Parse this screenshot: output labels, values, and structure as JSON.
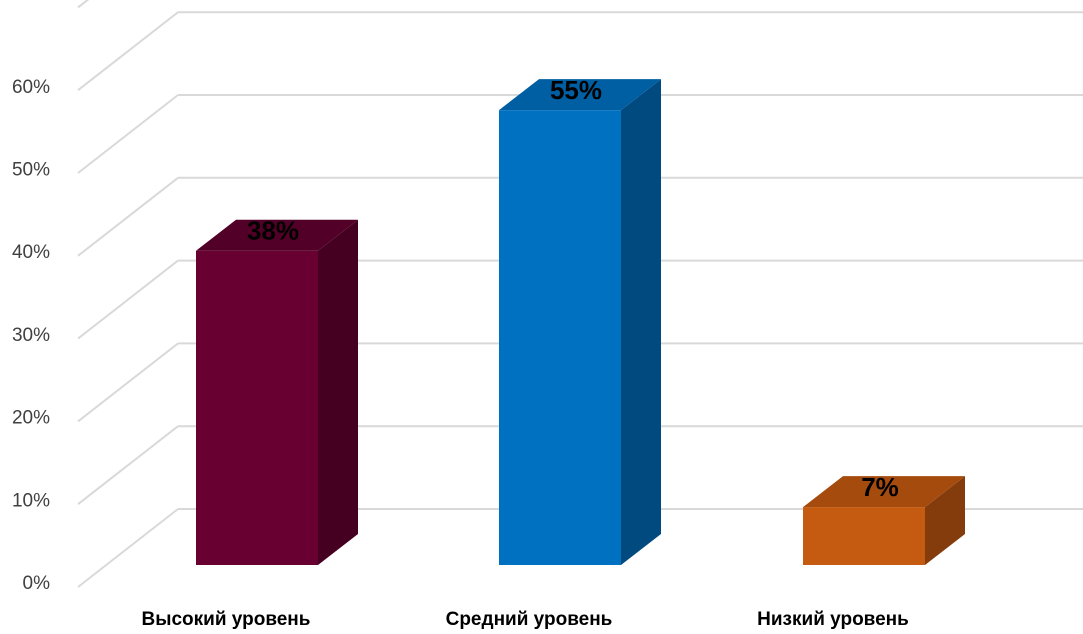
{
  "chart_data": {
    "type": "bar",
    "three_d": true,
    "categories": [
      "Высокий уровень",
      "Средний уровень",
      "Низкий уровень"
    ],
    "values": [
      38,
      55,
      7
    ],
    "data_labels": [
      "38%",
      "55%",
      "7%"
    ],
    "y_ticks": [
      "0%",
      "10%",
      "20%",
      "30%",
      "40%",
      "50%",
      "60%"
    ],
    "ylim": [
      0,
      70
    ],
    "grid": true,
    "legend": "none",
    "title": "",
    "xlabel": "",
    "ylabel": "",
    "colors": [
      {
        "front": "#680031",
        "top": "#520027",
        "side": "#450021"
      },
      {
        "front": "#0070C0",
        "top": "#005FA3",
        "side": "#004A80"
      },
      {
        "front": "#C55A11",
        "top": "#A64B0E",
        "side": "#843C0C"
      }
    ],
    "gridline_color": "#D9D9D9"
  }
}
